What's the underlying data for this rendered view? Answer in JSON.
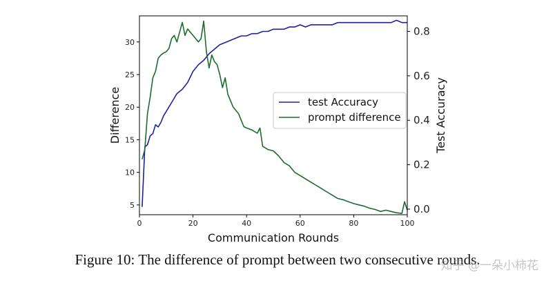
{
  "caption": "Figure 10: The difference of prompt between two consecutive rounds.",
  "watermark": "知乎 @一朵小柿花",
  "chart_data": {
    "type": "line",
    "title": "",
    "xlabel": "Communication Rounds",
    "ylabel_left": "Difference",
    "ylabel_right": "Test Accuracy",
    "xlim": [
      0,
      100
    ],
    "ylim_left": [
      3.5,
      34
    ],
    "ylim_right": [
      -0.025,
      0.87
    ],
    "x_ticks": [
      0,
      20,
      40,
      60,
      80,
      100
    ],
    "y_left_ticks": [
      5,
      10,
      15,
      20,
      25,
      30
    ],
    "y_right_ticks": [
      0.0,
      0.2,
      0.4,
      0.6,
      0.8
    ],
    "grid": false,
    "legend_position": "center-right",
    "series": [
      {
        "name": "test Accuracy",
        "axis": "right",
        "color": "#1f1f9e",
        "x": [
          1,
          2,
          3,
          4,
          5,
          6,
          7,
          8,
          9,
          10,
          12,
          14,
          16,
          18,
          20,
          22,
          24,
          26,
          28,
          30,
          32,
          34,
          36,
          38,
          40,
          42,
          44,
          46,
          48,
          50,
          52,
          54,
          56,
          58,
          60,
          62,
          64,
          66,
          68,
          70,
          72,
          74,
          76,
          78,
          80,
          82,
          84,
          86,
          88,
          90,
          92,
          94,
          96,
          98,
          100
        ],
        "values": [
          0.01,
          0.28,
          0.29,
          0.33,
          0.34,
          0.38,
          0.37,
          0.39,
          0.42,
          0.44,
          0.48,
          0.52,
          0.54,
          0.57,
          0.62,
          0.65,
          0.67,
          0.7,
          0.72,
          0.74,
          0.75,
          0.76,
          0.77,
          0.78,
          0.78,
          0.79,
          0.79,
          0.8,
          0.8,
          0.81,
          0.81,
          0.81,
          0.82,
          0.82,
          0.83,
          0.82,
          0.83,
          0.83,
          0.83,
          0.83,
          0.83,
          0.84,
          0.84,
          0.84,
          0.84,
          0.84,
          0.84,
          0.84,
          0.84,
          0.84,
          0.84,
          0.84,
          0.85,
          0.84,
          0.84
        ]
      },
      {
        "name": "prompt difference",
        "axis": "left",
        "color": "#1a6b2e",
        "x": [
          1,
          2,
          3,
          4,
          5,
          6,
          7,
          8,
          9,
          10,
          11,
          12,
          13,
          14,
          15,
          16,
          17,
          18,
          19,
          20,
          21,
          22,
          23,
          24,
          25,
          26,
          27,
          28,
          29,
          30,
          31,
          32,
          33,
          34,
          35,
          36,
          37,
          38,
          39,
          40,
          42,
          44,
          45,
          46,
          48,
          50,
          52,
          54,
          56,
          58,
          60,
          62,
          64,
          66,
          68,
          70,
          72,
          74,
          76,
          78,
          80,
          82,
          84,
          86,
          88,
          90,
          92,
          94,
          96,
          98,
          99,
          100
        ],
        "values": [
          12.0,
          13.5,
          19.0,
          21.5,
          24.5,
          25.5,
          27.5,
          28.0,
          28.3,
          28.5,
          29.0,
          30.5,
          31.0,
          30.0,
          31.5,
          33.0,
          31.0,
          32.0,
          31.5,
          31.0,
          30.5,
          30.0,
          30.5,
          33.2,
          28.5,
          26.0,
          28.0,
          27.0,
          26.5,
          25.0,
          23.0,
          24.5,
          22.0,
          21.0,
          20.0,
          19.5,
          19.0,
          18.0,
          17.0,
          16.8,
          16.5,
          16.0,
          16.8,
          14.0,
          13.5,
          13.3,
          12.5,
          11.5,
          11.0,
          10.0,
          9.5,
          9.0,
          8.5,
          8.0,
          7.5,
          7.0,
          6.5,
          6.0,
          5.8,
          5.5,
          5.2,
          5.0,
          4.8,
          4.5,
          4.3,
          4.0,
          4.2,
          4.0,
          3.8,
          3.7,
          5.5,
          4.2
        ]
      }
    ]
  }
}
